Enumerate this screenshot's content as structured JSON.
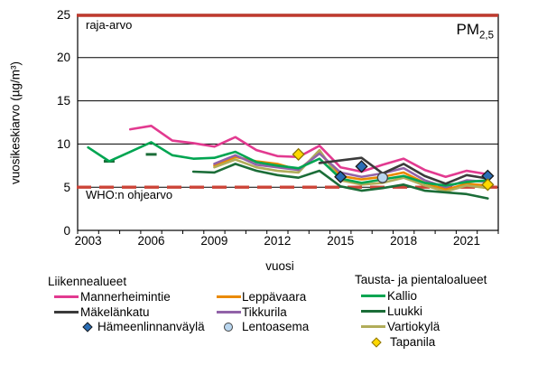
{
  "title": {
    "base": "PM",
    "sub": "2,5"
  },
  "annotations": {
    "limit": "raja-arvo",
    "who": "WHO:n ohjearvo"
  },
  "axes": {
    "y_title": "vuosikeskiarvo (µg/m³)",
    "x_title": "vuosi",
    "y_ticks": [
      25,
      20,
      15,
      10,
      5,
      0
    ],
    "x_ticks": [
      2003,
      2006,
      2009,
      2012,
      2015,
      2018,
      2021
    ]
  },
  "legend": {
    "groups": [
      {
        "title": "Liikennealueet",
        "columns": [
          [
            "mannerheimintie",
            "makelankatu",
            "hameenlinnanvayla"
          ],
          [
            "leppavaara",
            "tikkurila",
            "lentoasema"
          ]
        ]
      },
      {
        "title": "Tausta- ja pientaloalueet",
        "columns": [
          [
            "kallio",
            "luukki",
            "vartiokyla",
            "tapanila"
          ]
        ]
      }
    ]
  },
  "chart_data": {
    "type": "line",
    "title": "PM2,5",
    "xlabel": "vuosi",
    "ylabel": "vuosikeskiarvo (µg/m³)",
    "ylim": [
      0,
      25
    ],
    "grid_values": [
      5,
      10,
      15,
      20,
      25
    ],
    "x_years": [
      2003,
      2004,
      2005,
      2006,
      2007,
      2008,
      2009,
      2010,
      2011,
      2012,
      2013,
      2014,
      2015,
      2016,
      2017,
      2018,
      2019,
      2020,
      2021,
      2022
    ],
    "reference_lines": [
      {
        "key": "raja",
        "label": "raja-arvo",
        "value": 25,
        "style": "solid",
        "color": "#bf3a2e"
      },
      {
        "key": "who",
        "label": "WHO:n ohjearvo",
        "value": 5,
        "style": "dashed",
        "color": "#cc4437"
      }
    ],
    "series": [
      {
        "key": "leppavaara",
        "name": "Leppävaara",
        "group": "Liikennealueet",
        "type": "line",
        "color": "#ea8a00",
        "values": [
          null,
          null,
          null,
          null,
          null,
          null,
          7.5,
          8.5,
          8.0,
          7.7,
          7.0,
          9.0,
          6.3,
          5.9,
          6.2,
          6.7,
          5.5,
          4.7,
          5.4,
          5.2
        ]
      },
      {
        "key": "vartiokyla",
        "name": "Vartiokylä",
        "group": "Tausta- ja pientaloalueet",
        "type": "line",
        "color": "#b1ad5a",
        "values": [
          null,
          null,
          null,
          null,
          null,
          null,
          7.3,
          8.2,
          7.3,
          6.9,
          6.7,
          9.3,
          5.8,
          5.3,
          5.5,
          6.1,
          5.2,
          4.5,
          5.2,
          4.9
        ]
      },
      {
        "key": "tikkurila",
        "name": "Tikkurila",
        "group": "Liikennealueet",
        "type": "line",
        "color": "#9263a8",
        "values": [
          null,
          null,
          null,
          null,
          null,
          null,
          7.7,
          8.7,
          7.6,
          7.3,
          7.0,
          8.9,
          6.7,
          6.2,
          6.6,
          7.2,
          5.8,
          5.0,
          5.8,
          5.6
        ]
      },
      {
        "key": "luukki",
        "name": "Luukki",
        "group": "Tausta- ja pientaloalueet",
        "type": "line",
        "color": "#1b6d38",
        "values": [
          null,
          8.0,
          null,
          8.8,
          null,
          6.8,
          6.7,
          7.7,
          6.9,
          6.4,
          6.1,
          6.9,
          5.1,
          4.6,
          4.9,
          5.3,
          4.6,
          4.4,
          4.2,
          3.7
        ]
      },
      {
        "key": "kallio",
        "name": "Kallio",
        "group": "Tausta- ja pientaloalueet",
        "type": "line",
        "color": "#00a551",
        "values": [
          9.6,
          8.0,
          9.1,
          10.2,
          8.7,
          8.3,
          8.4,
          9.1,
          7.9,
          7.5,
          7.2,
          8.3,
          6.0,
          5.5,
          5.9,
          6.3,
          5.5,
          5.2,
          5.6,
          5.8
        ]
      },
      {
        "key": "mannerheimintie",
        "name": "Mannerheimintie",
        "group": "Liikennealueet",
        "type": "line",
        "color": "#e23a90",
        "values": [
          null,
          null,
          11.7,
          12.1,
          10.4,
          10.1,
          9.7,
          10.8,
          9.3,
          8.6,
          8.5,
          9.8,
          7.3,
          6.8,
          7.6,
          8.3,
          7.0,
          6.2,
          6.9,
          6.5
        ]
      },
      {
        "key": "makelankatu",
        "name": "Mäkelänkatu",
        "group": "Liikennealueet",
        "type": "line",
        "color": "#3b3b3b",
        "values": [
          null,
          null,
          null,
          null,
          null,
          null,
          null,
          null,
          null,
          null,
          null,
          7.8,
          8.1,
          8.4,
          6.6,
          7.7,
          6.3,
          5.4,
          6.4,
          6.0
        ]
      },
      {
        "key": "hameenlinnanvayla",
        "name": "Hämeenlinnanväylä",
        "group": "Liikennealueet",
        "type": "markers",
        "marker": "diamond",
        "fill": "#2a6db5",
        "edge": "#1a1a1a",
        "points": [
          [
            2015,
            6.2
          ],
          [
            2016,
            7.4
          ],
          [
            2022,
            6.3
          ]
        ]
      },
      {
        "key": "lentoasema",
        "name": "Lentoasema",
        "group": "Liikennealueet",
        "type": "markers",
        "marker": "circle",
        "fill": "#b9d6ef",
        "edge": "#444444",
        "points": [
          [
            2017,
            6.1
          ]
        ]
      },
      {
        "key": "tapanila",
        "name": "Tapanila",
        "group": "Tausta- ja pientaloalueet",
        "type": "markers",
        "marker": "diamond",
        "fill": "#ffd800",
        "edge": "#8c7400",
        "points": [
          [
            2013,
            8.8
          ],
          [
            2022,
            5.3
          ]
        ]
      }
    ]
  }
}
